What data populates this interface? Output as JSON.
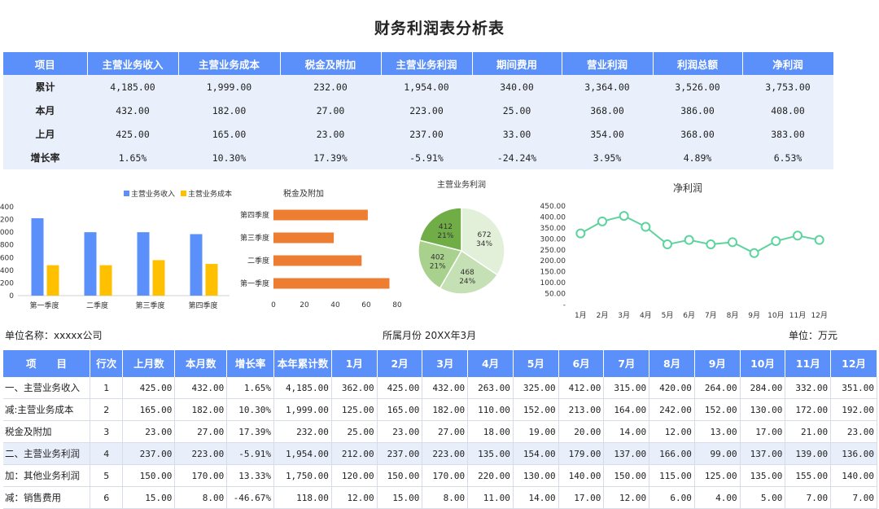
{
  "page": {
    "title": "财务利润表分析表",
    "unit_name": "单位名称：xxxxx公司",
    "period": "所属月份 20XX年3月",
    "unit": "单位：万元"
  },
  "summary": {
    "headers": [
      "项目",
      "主营业务收入",
      "主营业务成本",
      "税金及附加",
      "主营业务利润",
      "期间费用",
      "营业利润",
      "利润总额",
      "净利润"
    ],
    "rows": [
      [
        "累计",
        "4,185.00",
        "1,999.00",
        "232.00",
        "1,954.00",
        "340.00",
        "3,364.00",
        "3,526.00",
        "3,753.00"
      ],
      [
        "本月",
        "432.00",
        "182.00",
        "27.00",
        "223.00",
        "25.00",
        "368.00",
        "386.00",
        "408.00"
      ],
      [
        "上月",
        "425.00",
        "165.00",
        "23.00",
        "237.00",
        "33.00",
        "354.00",
        "368.00",
        "383.00"
      ],
      [
        "增长率",
        "1.65%",
        "10.30%",
        "17.39%",
        "-5.91%",
        "-24.24%",
        "3.95%",
        "4.89%",
        "6.53%"
      ]
    ]
  },
  "chart_data": [
    {
      "type": "bar",
      "title": "",
      "categories": [
        "第一季度",
        "二季度",
        "第三季度",
        "第四季度"
      ],
      "series": [
        {
          "name": "主营业务收入",
          "values": [
            1220,
            1000,
            1000,
            970
          ],
          "color": "#5b8ff9"
        },
        {
          "name": "主营业务成本",
          "values": [
            480,
            480,
            560,
            500
          ],
          "color": "#ffc000"
        }
      ],
      "ylim": [
        0,
        1400
      ],
      "yticks": [
        "0",
        "200",
        "400",
        "600",
        "800",
        "1000",
        "1200",
        "1400"
      ],
      "legend": "top"
    },
    {
      "type": "bar",
      "orientation": "horizontal",
      "title": "税金及附加",
      "categories": [
        "第一季度",
        "二季度",
        "第三季度",
        "第四季度"
      ],
      "values": [
        75,
        57,
        39,
        61
      ],
      "color": "#ed7d31",
      "xlim": [
        0,
        80
      ],
      "xticks": [
        "0",
        "20",
        "40",
        "60",
        "80"
      ]
    },
    {
      "type": "pie",
      "title": "主营业务利润",
      "values": [
        672,
        468,
        402,
        412
      ],
      "percent_labels": [
        "34%",
        "24%",
        "21%",
        "21%"
      ],
      "colors": [
        "#e2efd9",
        "#c5e0b4",
        "#a9d18e",
        "#70ad47"
      ]
    },
    {
      "type": "line",
      "title": "净利润",
      "categories": [
        "1月",
        "2月",
        "3月",
        "4月",
        "5月",
        "6月",
        "7月",
        "8月",
        "9月",
        "10月",
        "11月",
        "12月"
      ],
      "values": [
        325,
        380,
        405,
        355,
        275,
        295,
        275,
        285,
        235,
        290,
        315,
        295
      ],
      "color": "#5dd39e",
      "ylim": [
        0,
        450
      ],
      "yticks": [
        "-",
        "50.00",
        "100.00",
        "150.00",
        "200.00",
        "250.00",
        "300.00",
        "350.00",
        "400.00",
        "450.00"
      ]
    }
  ],
  "detail": {
    "headers": [
      "项　　目",
      "行次",
      "上月数",
      "本月数",
      "增长率",
      "本年累计数",
      "1月",
      "2月",
      "3月",
      "4月",
      "5月",
      "6月",
      "7月",
      "8月",
      "9月",
      "10月",
      "11月",
      "12月"
    ],
    "rows": [
      [
        "一、主营业务收入",
        "1",
        "425.00",
        "432.00",
        "1.65%",
        "4,185.00",
        "362.00",
        "425.00",
        "432.00",
        "263.00",
        "325.00",
        "412.00",
        "315.00",
        "420.00",
        "264.00",
        "284.00",
        "332.00",
        "351.00"
      ],
      [
        "减:主营业务成本",
        "2",
        "165.00",
        "182.00",
        "10.30%",
        "1,999.00",
        "125.00",
        "165.00",
        "182.00",
        "110.00",
        "152.00",
        "213.00",
        "164.00",
        "242.00",
        "152.00",
        "130.00",
        "172.00",
        "192.00"
      ],
      [
        "税金及附加",
        "3",
        "23.00",
        "27.00",
        "17.39%",
        "232.00",
        "25.00",
        "23.00",
        "27.00",
        "18.00",
        "19.00",
        "20.00",
        "14.00",
        "12.00",
        "13.00",
        "17.00",
        "21.00",
        "23.00"
      ],
      [
        "二、主营业务利润",
        "4",
        "237.00",
        "223.00",
        "-5.91%",
        "1,954.00",
        "212.00",
        "237.00",
        "223.00",
        "135.00",
        "154.00",
        "179.00",
        "137.00",
        "166.00",
        "99.00",
        "137.00",
        "139.00",
        "136.00"
      ],
      [
        "加：其他业务利润",
        "5",
        "150.00",
        "170.00",
        "13.33%",
        "1,750.00",
        "120.00",
        "150.00",
        "170.00",
        "220.00",
        "130.00",
        "140.00",
        "150.00",
        "115.00",
        "125.00",
        "135.00",
        "155.00",
        "140.00"
      ],
      [
        "减：销售费用",
        "6",
        "15.00",
        "8.00",
        "-46.67%",
        "118.00",
        "12.00",
        "15.00",
        "8.00",
        "11.00",
        "14.00",
        "17.00",
        "12.00",
        "6.00",
        "4.00",
        "5.00",
        "7.00",
        "7.00"
      ]
    ],
    "highlight_row": 3
  }
}
